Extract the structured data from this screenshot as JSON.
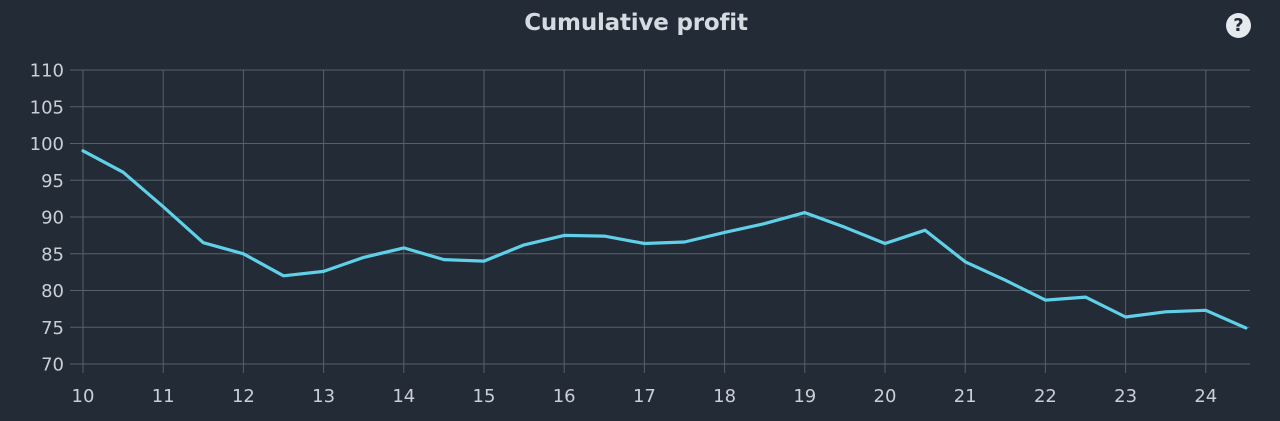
{
  "header": {
    "title": "Cumulative profit",
    "help_icon": "question-circle-icon",
    "help_glyph": "?"
  },
  "colors": {
    "background": "#232b36",
    "grid": "#56606d",
    "line": "#5fd0e8",
    "text": "#c9cfd6"
  },
  "chart_data": {
    "type": "line",
    "title": "Cumulative profit",
    "xlabel": "",
    "ylabel": "",
    "xlim": [
      10,
      24.5
    ],
    "ylim": [
      70,
      110
    ],
    "x_ticks": [
      10,
      11,
      12,
      13,
      14,
      15,
      16,
      17,
      18,
      19,
      20,
      21,
      22,
      23,
      24
    ],
    "y_ticks": [
      70,
      75,
      80,
      85,
      90,
      95,
      100,
      105,
      110
    ],
    "grid": true,
    "legend": "none",
    "series": [
      {
        "x": [
          10,
          10.5,
          11,
          11.5,
          12,
          12.5,
          13,
          13.5,
          14,
          14.5,
          15,
          15.5,
          16,
          16.5,
          17,
          17.5,
          18,
          18.5,
          19,
          19.5,
          20,
          20.5,
          21,
          21.5,
          22,
          22.5,
          23,
          23.5,
          24,
          24.5
        ],
        "values": [
          99,
          96.1,
          91.4,
          86.5,
          85,
          82,
          82.6,
          84.5,
          85.8,
          84.2,
          84,
          86.2,
          87.5,
          87.4,
          86.4,
          86.6,
          87.9,
          89.1,
          90.6,
          88.6,
          86.4,
          88.2,
          83.9,
          81.4,
          78.7,
          79.1,
          76.4,
          77.1,
          77.3,
          74.9
        ]
      }
    ]
  }
}
